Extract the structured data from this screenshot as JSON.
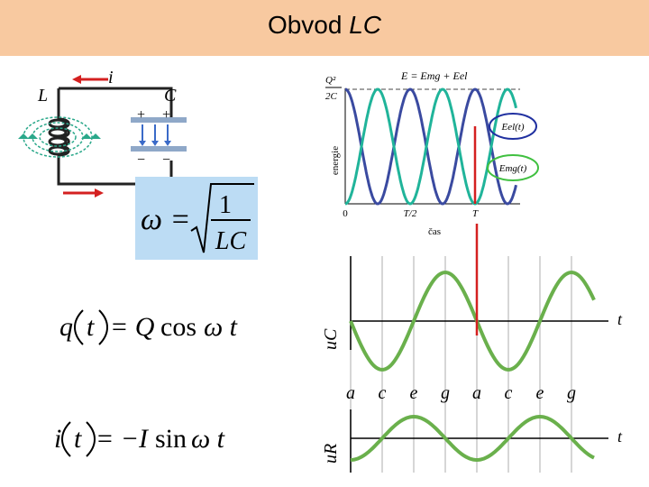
{
  "title": {
    "main": "Obvod",
    "italic": "LC"
  },
  "circuit": {
    "label_L": "L",
    "label_C": "C",
    "label_i": "i",
    "plus_sign": "+",
    "minus_sign": "−"
  },
  "formulas": {
    "omega": {
      "lhs": "ω =",
      "num": "1",
      "den": "LC"
    },
    "charge": {
      "q": "q",
      "t": "t",
      "eq": "= Q",
      "cos": "cos",
      "omega_t": "ω t"
    },
    "current": {
      "i": "i",
      "t": "t",
      "eq": "= −I",
      "sin": "sin",
      "omega_t": "ω t"
    }
  },
  "energy_chart": {
    "title": "E = Emg + Eel",
    "ylabel": "energie",
    "xlabel": "čas",
    "y_top_label_num": "Q²",
    "y_top_label_den": "2C",
    "x_ticks": [
      "0",
      "T/2",
      "T"
    ],
    "legend": [
      "Eel(t)",
      "Emg(t)"
    ],
    "colors": {
      "el": "#3a4aa0",
      "mg": "#20b49a",
      "marker": "#d42020",
      "circle_el": "#2030a0",
      "circle_mg": "#40c040"
    }
  },
  "voltage_chart": {
    "ylabel_top": "uC",
    "ylabel_bottom": "uR",
    "t_label": "t",
    "x_labels": [
      "a",
      "c",
      "e",
      "g",
      "a",
      "c",
      "e",
      "g"
    ],
    "curve_color": "#6ab04c"
  },
  "chart_data": [
    {
      "type": "line",
      "title": "E = Emg + Eel",
      "xlabel": "čas",
      "ylabel": "energie",
      "x_ticks": [
        "0",
        "T/2",
        "T"
      ],
      "y_ticks": [
        "Q²/2C"
      ],
      "series": [
        {
          "name": "Eel(t)",
          "x": [
            0,
            0.125,
            0.25,
            0.375,
            0.5,
            0.625,
            0.75,
            0.875,
            1
          ],
          "values": [
            1,
            0.5,
            0,
            0.5,
            1,
            0.5,
            0,
            0.5,
            1
          ]
        },
        {
          "name": "Emg(t)",
          "x": [
            0,
            0.125,
            0.25,
            0.375,
            0.5,
            0.625,
            0.75,
            0.875,
            1
          ],
          "values": [
            0,
            0.5,
            1,
            0.5,
            0,
            0.5,
            1,
            0.5,
            0
          ]
        },
        {
          "name": "E = Emg + Eel",
          "x": [
            0,
            1
          ],
          "values": [
            1,
            1
          ]
        }
      ]
    },
    {
      "type": "line",
      "ylabel": "uC",
      "xlabel": "t",
      "categories": [
        "a",
        "c",
        "e",
        "g",
        "a",
        "c",
        "e",
        "g"
      ],
      "series": [
        {
          "name": "uC",
          "values": [
            0,
            -1,
            0,
            1,
            0,
            -1,
            0,
            1
          ]
        }
      ]
    },
    {
      "type": "line",
      "ylabel": "uR",
      "xlabel": "t",
      "categories": [
        "a",
        "c",
        "e",
        "g",
        "a",
        "c",
        "e",
        "g"
      ],
      "series": [
        {
          "name": "uR",
          "values": [
            -1,
            0,
            1,
            0,
            -1,
            0,
            1,
            0
          ]
        }
      ]
    }
  ]
}
